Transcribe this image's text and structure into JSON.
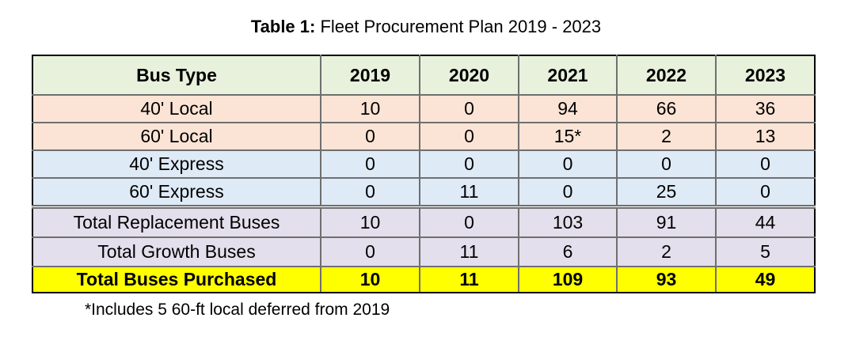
{
  "caption": {
    "label": "Table 1:",
    "text": "Fleet Procurement Plan 2019 - 2023"
  },
  "table": {
    "columns": [
      "Bus Type",
      "2019",
      "2020",
      "2021",
      "2022",
      "2023"
    ],
    "rows": [
      [
        "40' Local",
        "10",
        "0",
        "94",
        "66",
        "36"
      ],
      [
        "60' Local",
        "0",
        "0",
        "15*",
        "2",
        "13"
      ],
      [
        "40' Express",
        "0",
        "0",
        "0",
        "0",
        "0"
      ],
      [
        "60' Express",
        "0",
        "11",
        "0",
        "25",
        "0"
      ],
      [
        "Total Replacement Buses",
        "10",
        "0",
        "103",
        "91",
        "44"
      ],
      [
        "Total Growth Buses",
        "0",
        "11",
        "6",
        "2",
        "5"
      ],
      [
        "Total Buses Purchased",
        "10",
        "11",
        "109",
        "93",
        "49"
      ]
    ]
  },
  "colors": {
    "header_bg": "#e8f1dc",
    "local_bg": "#fbe4d5",
    "express_bg": "#deeaf6",
    "summary_bg": "#e4dfec",
    "total_bg": "#ffff00"
  },
  "footnote": "*Includes 5 60-ft local deferred from 2019"
}
